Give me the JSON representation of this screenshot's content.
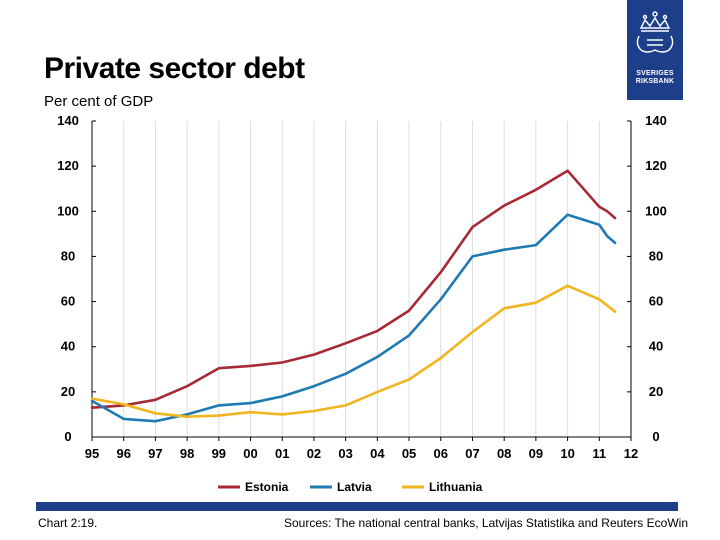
{
  "header": {
    "title": "Private sector debt",
    "subtitle": "Per cent of GDP"
  },
  "logo": {
    "line1": "SVERIGES",
    "line2": "RIKSBANK",
    "icon": "riksbank-crown-emblem-icon",
    "color": "#1d3f8a"
  },
  "footer": {
    "chart_number": "Chart 2:19.",
    "sources": "Sources: The national central banks, Latvijas Statistika and Reuters EcoWin"
  },
  "chart_data": {
    "type": "line",
    "x_ticks": [
      "95",
      "96",
      "97",
      "98",
      "99",
      "00",
      "01",
      "02",
      "03",
      "04",
      "05",
      "06",
      "07",
      "08",
      "09",
      "10",
      "11",
      "12"
    ],
    "xlim": [
      1995,
      2012
    ],
    "ylim": [
      0,
      140
    ],
    "y_ticks": [
      0,
      20,
      40,
      60,
      80,
      100,
      120,
      140
    ],
    "y_ticks_right": [
      0,
      20,
      40,
      60,
      80,
      100,
      120,
      140
    ],
    "grid": "vertical",
    "legend_position": "bottom",
    "series": [
      {
        "name": "Estonia",
        "color": "#a52a35",
        "x": [
          1995,
          1996,
          1997,
          1998,
          1999,
          2000,
          2001,
          2002,
          2003,
          2004,
          2005,
          2006,
          2007,
          2008,
          2009,
          2010,
          2011,
          2011.25,
          2011.5
        ],
        "values": [
          13,
          14,
          16.5,
          22.5,
          30.5,
          31.5,
          33,
          36.5,
          41.5,
          47,
          56,
          73,
          93,
          102.5,
          109.5,
          118,
          102,
          100,
          97
        ]
      },
      {
        "name": "Latvia",
        "color": "#1f7ab4",
        "x": [
          1995,
          1996,
          1997,
          1998,
          1999,
          2000,
          2001,
          2002,
          2003,
          2004,
          2005,
          2006,
          2007,
          2008,
          2009,
          2010,
          2011,
          2011.25,
          2011.5
        ],
        "values": [
          16,
          8,
          7,
          10,
          14,
          15,
          18,
          22.5,
          28,
          35.5,
          45,
          61,
          80,
          83,
          85,
          98.5,
          94,
          89,
          86
        ]
      },
      {
        "name": "Lithuania",
        "color": "#f0b51f",
        "x": [
          1995,
          1996,
          1997,
          1998,
          1999,
          2000,
          2001,
          2002,
          2003,
          2004,
          2005,
          2006,
          2007,
          2008,
          2009,
          2010,
          2011,
          2011.5
        ],
        "values": [
          17,
          14.5,
          10.5,
          9,
          9.5,
          11,
          10,
          11.5,
          14,
          20,
          25.5,
          35,
          46.5,
          57,
          59.5,
          67,
          61,
          55.5
        ]
      }
    ]
  }
}
